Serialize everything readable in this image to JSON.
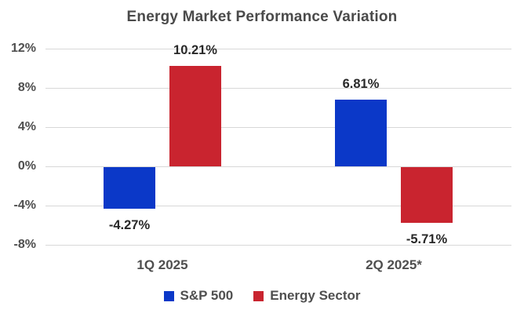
{
  "chart_data": {
    "type": "bar",
    "title": "Energy Market Performance Variation",
    "categories": [
      "1Q 2025",
      "2Q 2025*"
    ],
    "series": [
      {
        "name": "S&P 500",
        "color": "#0b38c8",
        "values": [
          -4.27,
          6.81
        ],
        "value_labels": [
          "-4.27%",
          "6.81%"
        ]
      },
      {
        "name": "Energy Sector",
        "color": "#c9242f",
        "values": [
          10.21,
          -5.71
        ],
        "value_labels": [
          "10.21%",
          "-5.71%"
        ]
      }
    ],
    "yticks": [
      12,
      8,
      4,
      0,
      -4,
      -8
    ],
    "ytick_labels": [
      "12%",
      "8%",
      "4%",
      "0%",
      "-4%",
      "-8%"
    ],
    "ylim": [
      -8,
      13
    ],
    "xlabel": "",
    "ylabel": "",
    "grid": true,
    "legend_position": "bottom",
    "value_suffix": "%"
  },
  "colors": {
    "background": "#ffffff",
    "title_text": "#4a4a4a",
    "axis_text": "#4f4f4f",
    "value_text": "#282828",
    "gridline": "#d8d8d8",
    "series_sp500": "#0b38c8",
    "series_energy": "#c9242f"
  }
}
